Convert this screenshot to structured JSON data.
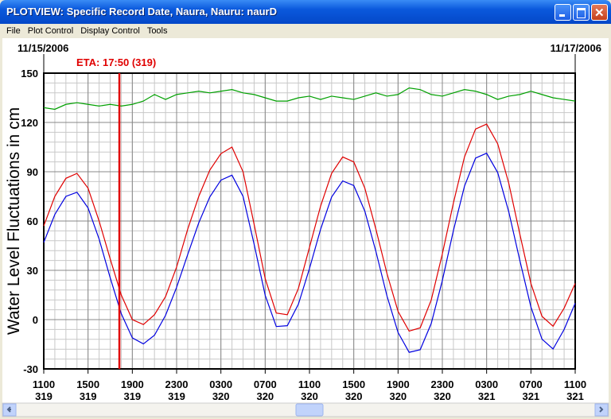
{
  "window": {
    "title": "PLOTVIEW: Specific Record Date, Naura, Nauru: naurD",
    "menu": [
      "File",
      "Plot Control",
      "Display Control",
      "Tools"
    ]
  },
  "chart_data": {
    "type": "line",
    "start_label": "11/15/2006",
    "end_label": "11/17/2006",
    "ylabel": "Water Level Fluctuations in cm",
    "annotation": {
      "text": "ETA: 17:50 (319)",
      "x": 6.83,
      "color": "#e00000"
    },
    "x": [
      0,
      1,
      2,
      3,
      4,
      5,
      6,
      7,
      8,
      9,
      10,
      11,
      12,
      13,
      14,
      15,
      16,
      17,
      18,
      19,
      20,
      21,
      22,
      23,
      24,
      25,
      26,
      27,
      28,
      29,
      30,
      31,
      32,
      33,
      34,
      35,
      36,
      37,
      38,
      39,
      40,
      41,
      42,
      43,
      44,
      45,
      46,
      47,
      48
    ],
    "series": [
      {
        "color": "#00a000",
        "values": [
          129,
          128,
          131,
          132,
          131,
          130,
          131,
          130,
          131,
          133,
          137,
          134,
          137,
          138,
          139,
          138,
          139,
          140,
          138,
          137,
          135,
          133,
          133,
          135,
          136,
          134,
          136,
          135,
          134,
          136,
          138,
          136,
          137,
          141,
          140,
          137,
          136,
          138,
          140,
          139,
          137,
          134,
          136,
          137,
          139,
          137,
          135,
          134,
          133
        ]
      },
      {
        "color": "#e00000",
        "values": [
          57,
          75,
          86,
          89,
          80,
          60,
          37,
          15,
          0,
          -3,
          3,
          14,
          32,
          55,
          75,
          91,
          101,
          105,
          90,
          58,
          25,
          4,
          3,
          19,
          44,
          69,
          89,
          99,
          96,
          80,
          55,
          28,
          5,
          -7,
          -5,
          12,
          40,
          71,
          99,
          116,
          119,
          107,
          83,
          52,
          22,
          2,
          -4,
          7,
          22
        ]
      },
      {
        "color": "#0000e0",
        "values": [
          47,
          64,
          75,
          77.5,
          68,
          49,
          25.5,
          3.6,
          -11.1,
          -14.8,
          -9.5,
          2.6,
          19.7,
          39.6,
          58.9,
          74.7,
          84.9,
          87.9,
          75,
          45.9,
          14.8,
          -4.2,
          -3.7,
          9.4,
          31.1,
          54.9,
          74.6,
          84.4,
          81.6,
          66,
          41.5,
          14.4,
          -7.8,
          -19.9,
          -18.3,
          -2.3,
          23.8,
          54.2,
          81.2,
          98.3,
          101.3,
          89.5,
          65.6,
          36,
          7.7,
          -11.9,
          -17.9,
          -6,
          10
        ]
      }
    ],
    "xlim": [
      0,
      48
    ],
    "xticks": [
      {
        "value": 0,
        "label": "1100"
      },
      {
        "value": 4,
        "label": "1500"
      },
      {
        "value": 8,
        "label": "1900"
      },
      {
        "value": 12,
        "label": "2300"
      },
      {
        "value": 16,
        "label": "0300"
      },
      {
        "value": 20,
        "label": "0700"
      },
      {
        "value": 24,
        "label": "1100"
      },
      {
        "value": 28,
        "label": "1500"
      },
      {
        "value": 32,
        "label": "1900"
      },
      {
        "value": 36,
        "label": "2300"
      },
      {
        "value": 40,
        "label": "0300"
      },
      {
        "value": 44,
        "label": "0700"
      },
      {
        "value": 48,
        "label": "1100"
      }
    ],
    "xtick_days": [
      "319",
      "319",
      "319",
      "319",
      "320",
      "320",
      "320",
      "320",
      "320",
      "320",
      "321",
      "321",
      "321"
    ],
    "ylim": [
      -30,
      150
    ],
    "yticks": [
      -30,
      0,
      30,
      60,
      90,
      120,
      150
    ],
    "grid": true,
    "minor_grid": {
      "x": 1,
      "y": 6
    }
  }
}
